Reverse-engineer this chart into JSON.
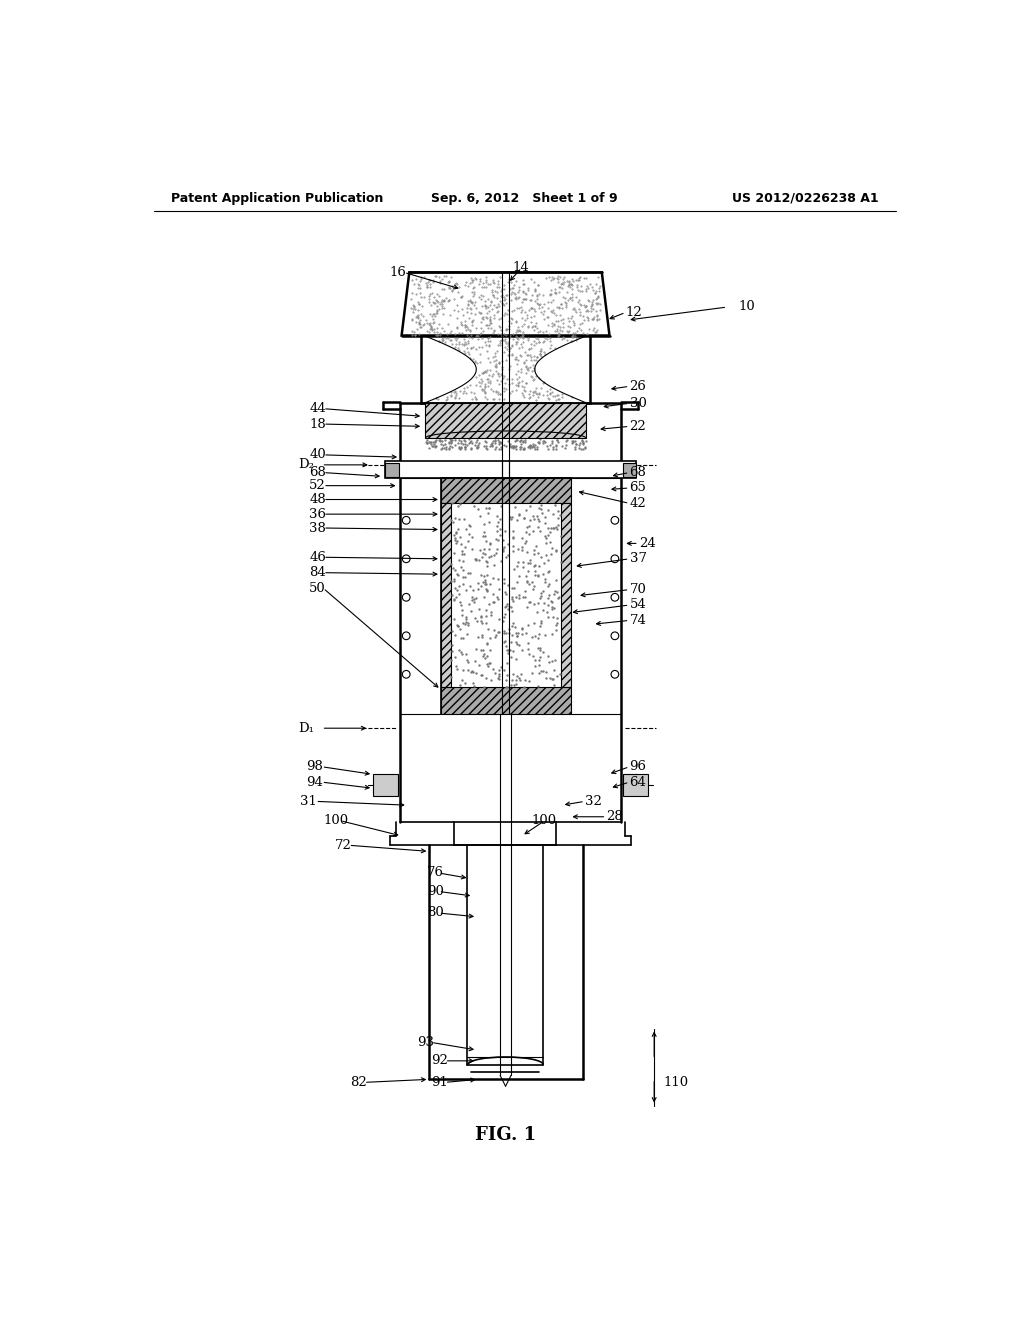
{
  "header_left": "Patent Application Publication",
  "header_center": "Sep. 6, 2012   Sheet 1 of 9",
  "header_right": "US 2012/0226238 A1",
  "figure_label": "FIG. 1",
  "bg": "#ffffff",
  "lw1": 1.8,
  "lw2": 1.2,
  "lw3": 0.8,
  "gray1": "#aaaaaa",
  "gray2": "#cccccc",
  "gray3": "#888888",
  "stipple": "#777777"
}
